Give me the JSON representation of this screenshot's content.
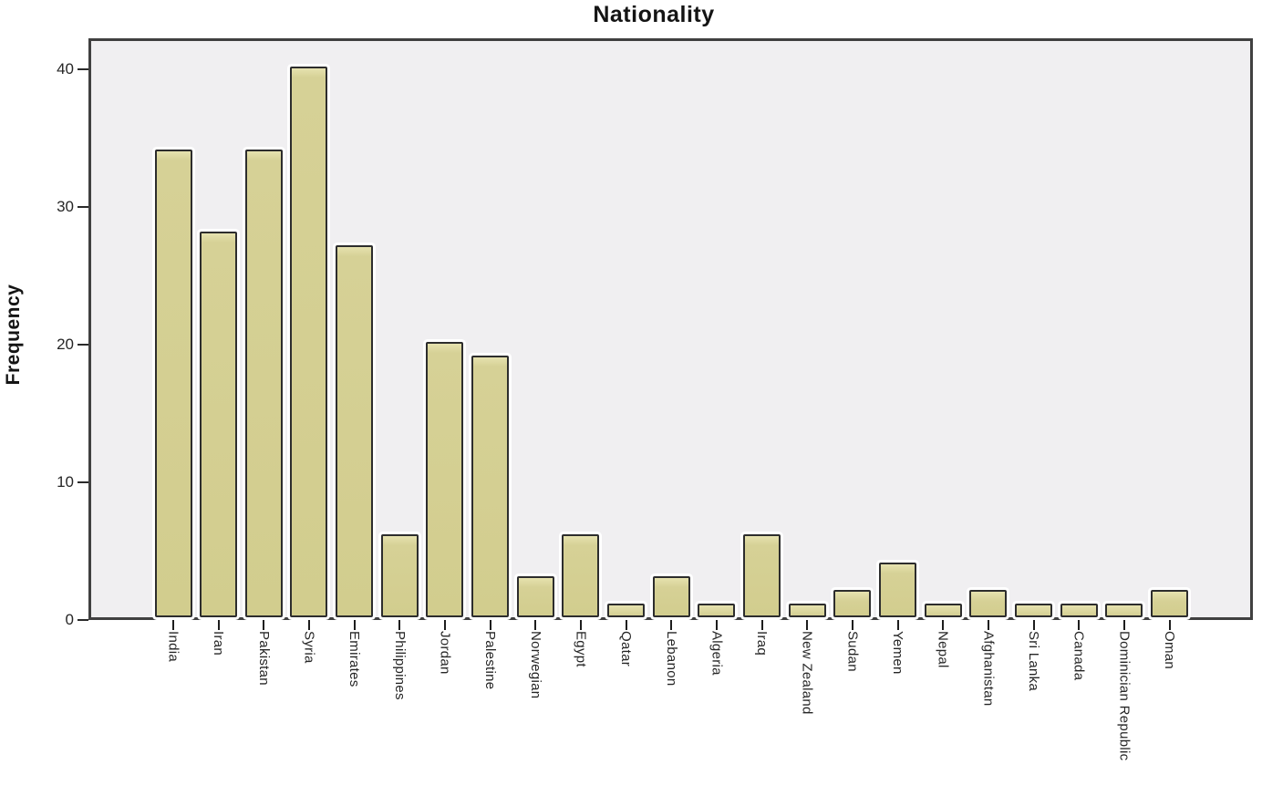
{
  "chart_data": {
    "type": "bar",
    "title": "Nationality",
    "xlabel": "",
    "ylabel": "Frequency",
    "categories": [
      "India",
      "Iran",
      "Pakistan",
      "Syria",
      "Emirates",
      "Philippines",
      "Jordan",
      "Palestine",
      "Norwegian",
      "Egypt",
      "Qatar",
      "Lebanon",
      "Algeria",
      "Iraq",
      "New Zealand",
      "Sudan",
      "Yemen",
      "Nepal",
      "Afghanistan",
      "Sri Lanka",
      "Canada",
      "Dominician Republic",
      "Oman"
    ],
    "values": [
      34,
      28,
      34,
      40,
      27,
      6,
      20,
      19,
      3,
      6,
      1,
      3,
      1,
      6,
      1,
      2,
      4,
      1,
      2,
      1,
      1,
      1,
      2
    ],
    "yticks": [
      0,
      10,
      20,
      30,
      40
    ],
    "ylim": [
      0,
      42.25
    ],
    "grid": false,
    "legend_shown": false,
    "colors": {
      "bar_fill": "#d6d196",
      "bar_border": "#2d2d2d",
      "bar_halo": "#ffffff",
      "panel_bg": "#f0eff1",
      "frame": "#404040",
      "text": "#262626",
      "title_text": "#141414"
    }
  }
}
